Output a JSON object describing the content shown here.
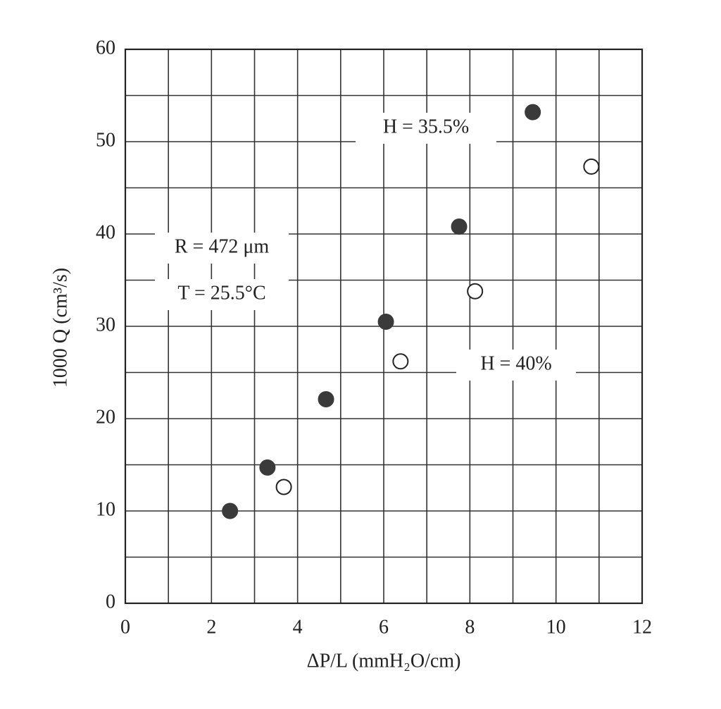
{
  "chart_data": {
    "type": "scatter",
    "xlabel": "ΔP/L (mmH₂O/cm)",
    "ylabel": "1000 Q (cm³/s)",
    "xlim": [
      0,
      12
    ],
    "ylim": [
      0,
      60
    ],
    "xticks": [
      0,
      2,
      4,
      6,
      8,
      10,
      12
    ],
    "yticks": [
      0,
      10,
      20,
      30,
      40,
      50,
      60
    ],
    "grid": true,
    "minor_grid": true,
    "series": [
      {
        "name": "H = 35.5%",
        "color": "#3a3a3a",
        "marker": "filled",
        "x": [
          2.43,
          3.3,
          4.66,
          6.05,
          7.75,
          9.46
        ],
        "values": [
          10.0,
          14.7,
          22.1,
          30.5,
          40.8,
          53.2
        ]
      },
      {
        "name": "H = 40%",
        "color": "#222222",
        "marker": "open",
        "x": [
          3.68,
          6.39,
          8.12,
          10.82
        ],
        "values": [
          12.6,
          26.2,
          33.8,
          47.3
        ]
      }
    ],
    "annotations": [
      "R = 472 μm",
      "T = 25.5°C"
    ]
  }
}
